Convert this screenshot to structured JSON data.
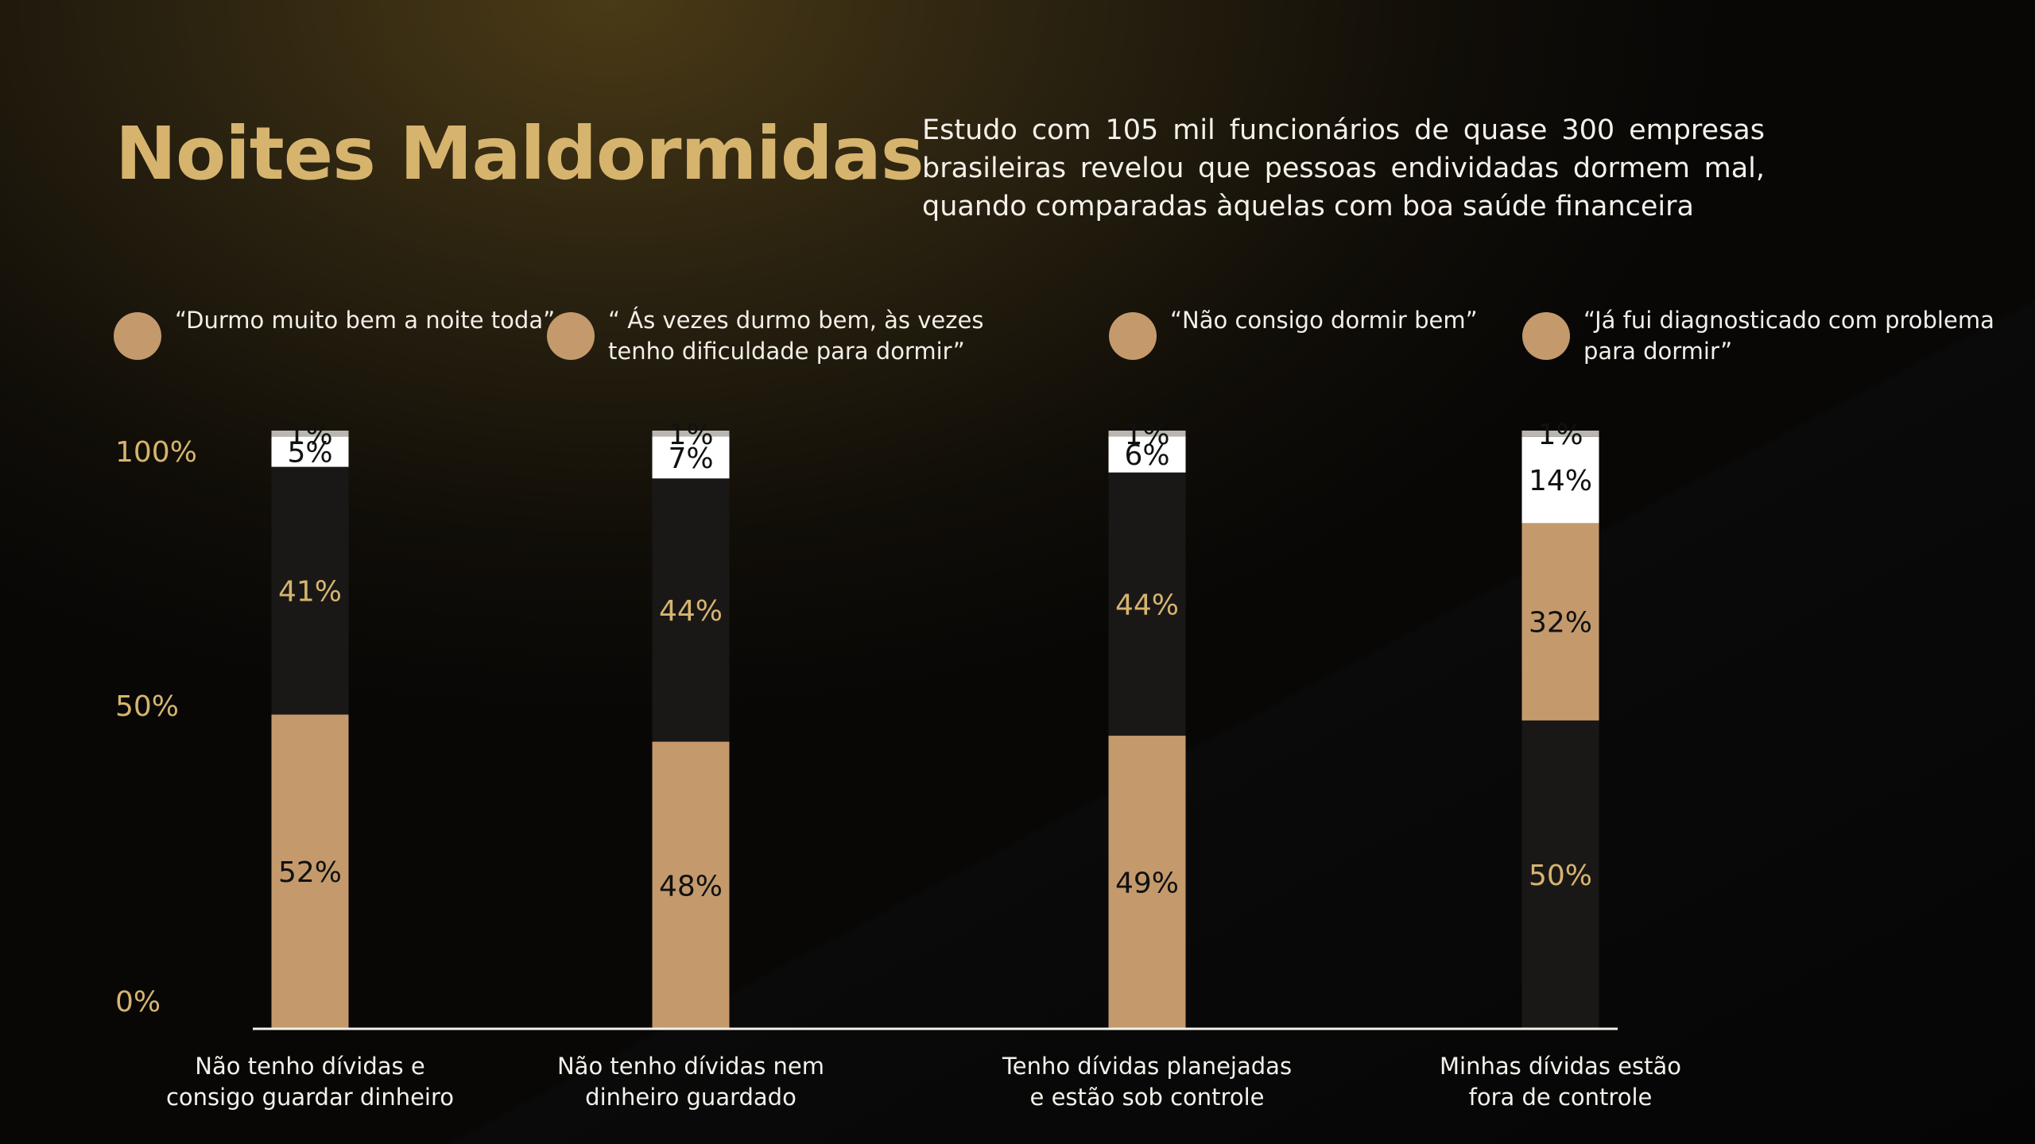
{
  "header": {
    "title": "Noites Maldormidas",
    "subtitle": "Estudo com 105 mil funcionários de quase 300 empresas brasileiras revelou que pessoas endividadas dormem mal, quando comparadas àquelas com boa saúde financeira"
  },
  "legend": [
    {
      "label": "“Durmo muito bem a noite toda”",
      "color": "#c49a6c"
    },
    {
      "label": "“ Ás vezes durmo bem, às vezes tenho dificuldade para dormir”",
      "color": "#c49a6c"
    },
    {
      "label": "“Não consigo dormir bem”",
      "color": "#c49a6c"
    },
    {
      "label": "“Já fui diagnosticado com problema para dormir”",
      "color": "#c49a6c"
    }
  ],
  "colors": {
    "tan": "#c49a6c",
    "dark": "#1a1817",
    "white": "#ffffff",
    "gray": "#b9b6b2",
    "axis_text": "#d6b46e"
  },
  "chart_data": {
    "type": "bar",
    "stacked": true,
    "yticks": [
      "0%",
      "50%",
      "100%"
    ],
    "ylim": [
      0,
      100
    ],
    "categories": [
      "Não tenho dívidas e consigo guardar dinheiro",
      "Não tenho dívidas nem dinheiro guardado",
      "Tenho dívidas planejadas e estão sob controle",
      "Minhas dívidas estão fora de controle"
    ],
    "stacks": [
      [
        {
          "value": 52,
          "label": "52%",
          "fill": "tan",
          "text": "black"
        },
        {
          "value": 41,
          "label": "41%",
          "fill": "dark",
          "text": "gold"
        },
        {
          "value": 5,
          "label": "5%",
          "fill": "white",
          "text": "black"
        },
        {
          "value": 1,
          "label": "1%",
          "fill": "gray",
          "text": "black"
        }
      ],
      [
        {
          "value": 48,
          "label": "48%",
          "fill": "tan",
          "text": "black"
        },
        {
          "value": 44,
          "label": "44%",
          "fill": "dark",
          "text": "gold"
        },
        {
          "value": 7,
          "label": "7%",
          "fill": "white",
          "text": "black"
        },
        {
          "value": 1,
          "label": "1%",
          "fill": "gray",
          "text": "black"
        }
      ],
      [
        {
          "value": 49,
          "label": "49%",
          "fill": "tan",
          "text": "black"
        },
        {
          "value": 44,
          "label": "44%",
          "fill": "dark",
          "text": "gold"
        },
        {
          "value": 6,
          "label": "6%",
          "fill": "white",
          "text": "black"
        },
        {
          "value": 1,
          "label": "1%",
          "fill": "gray",
          "text": "black"
        }
      ],
      [
        {
          "value": 50,
          "label": "50%",
          "fill": "dark",
          "text": "gold"
        },
        {
          "value": 32,
          "label": "32%",
          "fill": "tan",
          "text": "black"
        },
        {
          "value": 14,
          "label": "14%",
          "fill": "white",
          "text": "black"
        },
        {
          "value": 1,
          "label": "1%",
          "fill": "gray",
          "text": "black"
        }
      ]
    ]
  }
}
